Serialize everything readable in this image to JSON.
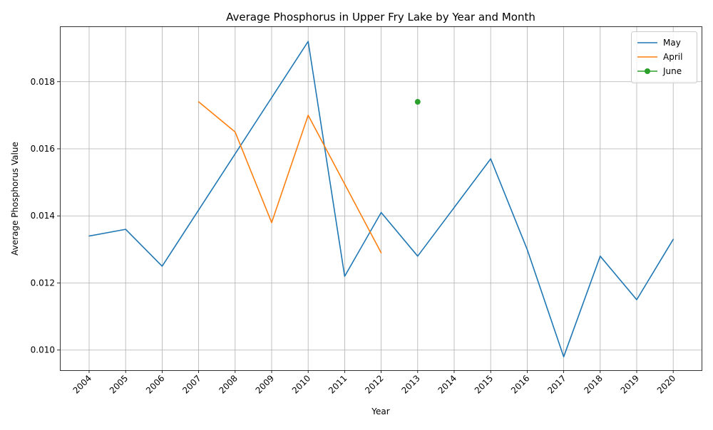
{
  "chart_data": {
    "type": "line",
    "title": "Average Phosphorus in Upper Fry Lake by Year and Month",
    "xlabel": "Year",
    "ylabel": "Average Phosphorus Value",
    "x": [
      "2004",
      "2005",
      "2006",
      "2007",
      "2008",
      "2009",
      "2010",
      "2011",
      "2012",
      "2013",
      "2014",
      "2015",
      "2016",
      "2017",
      "2018",
      "2019",
      "2020"
    ],
    "ylim": [
      0.0094,
      0.01965
    ],
    "yticks": [
      0.01,
      0.012,
      0.014,
      0.016,
      0.018
    ],
    "ytick_labels": [
      "0.010",
      "0.012",
      "0.014",
      "0.016",
      "0.018"
    ],
    "grid": true,
    "legend_position": "top-right",
    "series": [
      {
        "name": "May",
        "color": "#1f77b4",
        "marker": false,
        "points": [
          {
            "x": "2004",
            "y": 0.0134
          },
          {
            "x": "2005",
            "y": 0.0136
          },
          {
            "x": "2006",
            "y": 0.0125
          },
          {
            "x": "2010",
            "y": 0.0192
          },
          {
            "x": "2011",
            "y": 0.0122
          },
          {
            "x": "2012",
            "y": 0.0141
          },
          {
            "x": "2013",
            "y": 0.0128
          },
          {
            "x": "2015",
            "y": 0.0157
          },
          {
            "x": "2016",
            "y": 0.013
          },
          {
            "x": "2017",
            "y": 0.0098
          },
          {
            "x": "2018",
            "y": 0.0128
          },
          {
            "x": "2019",
            "y": 0.0115
          },
          {
            "x": "2020",
            "y": 0.0133
          }
        ]
      },
      {
        "name": "April",
        "color": "#ff7f0e",
        "marker": false,
        "points": [
          {
            "x": "2007",
            "y": 0.0174
          },
          {
            "x": "2008",
            "y": 0.0165
          },
          {
            "x": "2009",
            "y": 0.0138
          },
          {
            "x": "2010",
            "y": 0.017
          },
          {
            "x": "2012",
            "y": 0.0129
          }
        ]
      },
      {
        "name": "June",
        "color": "#2ca02c",
        "marker": true,
        "points": [
          {
            "x": "2013",
            "y": 0.0174
          }
        ]
      }
    ]
  }
}
